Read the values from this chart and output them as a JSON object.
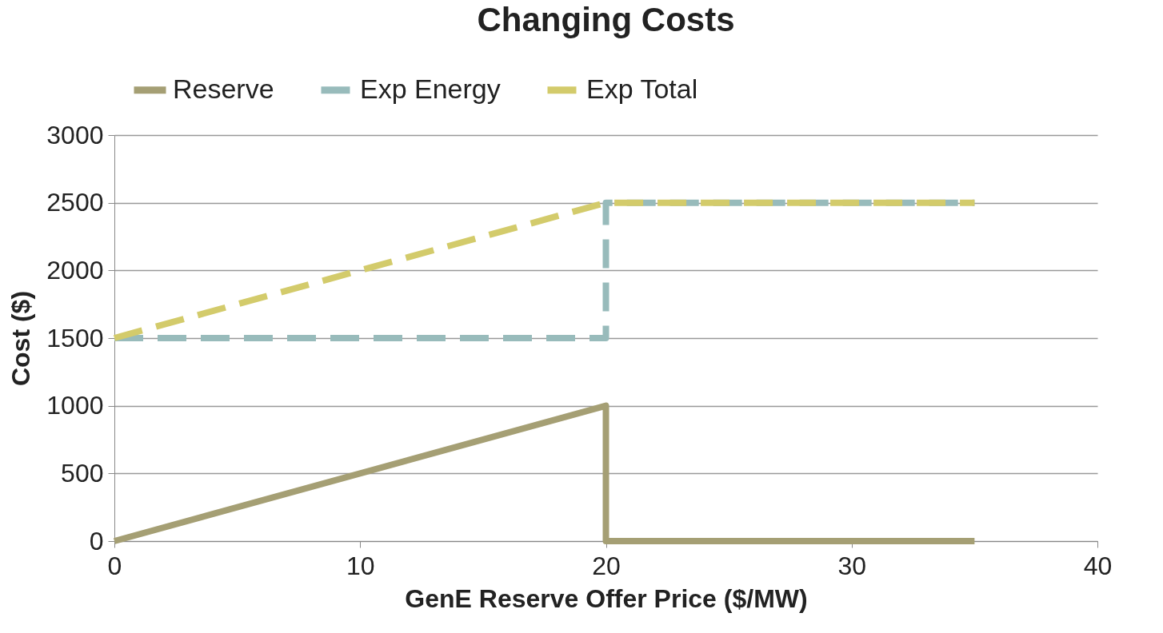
{
  "chart_data": {
    "type": "line",
    "title": "Changing Costs",
    "xlabel": "GenE Reserve Offer Price ($/MW)",
    "ylabel": "Cost ($)",
    "series": [
      {
        "name": "Reserve",
        "color": "#a59f74",
        "line_style": "solid",
        "x": [
          0,
          20,
          20,
          35
        ],
        "values": [
          0,
          1000,
          0,
          0
        ]
      },
      {
        "name": "Exp Energy",
        "color": "#98bbbb",
        "line_style": "dashed",
        "x": [
          0,
          20,
          20,
          35
        ],
        "values": [
          1500,
          1500,
          2500,
          2500
        ]
      },
      {
        "name": "Exp Total",
        "color": "#d3cb6b",
        "line_style": "dashed",
        "x": [
          0,
          20,
          35
        ],
        "values": [
          1500,
          2500,
          2500
        ]
      }
    ],
    "xlim": [
      0,
      40
    ],
    "xticks": [
      0,
      10,
      20,
      30,
      40
    ],
    "ylim": [
      0,
      3000
    ],
    "yticks": [
      0,
      500,
      1000,
      1500,
      2000,
      2500,
      3000
    ],
    "grid": "y",
    "legend": "top",
    "marker": "none"
  }
}
